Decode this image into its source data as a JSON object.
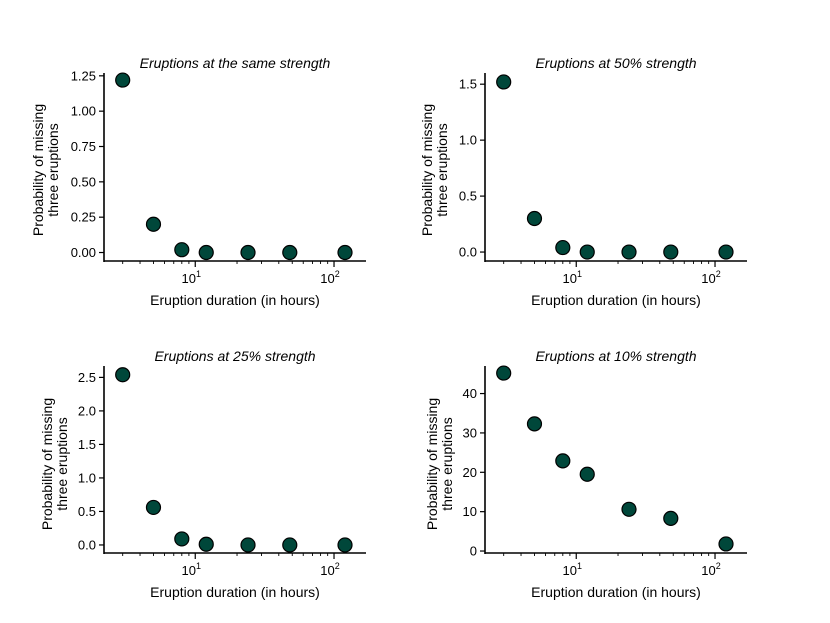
{
  "figure": {
    "marker_color": "#00473a",
    "edge_color": "#000000"
  },
  "chart_data": [
    {
      "type": "scatter",
      "title": "Eruptions at the same strength",
      "xlabel": "Eruption duration (in hours)",
      "ylabel": [
        "Probability of missing",
        "three eruptions"
      ],
      "xscale": "log",
      "xlim": [
        2.2,
        170
      ],
      "ylim": [
        -0.06,
        1.27
      ],
      "yticks": [
        0.0,
        0.25,
        0.5,
        0.75,
        1.0,
        1.25
      ],
      "ytick_labels": [
        "0.00",
        "0.25",
        "0.50",
        "0.75",
        "1.00",
        "1.25"
      ],
      "xtick_major": [
        {
          "value": 10,
          "base": "10",
          "exp": "1"
        },
        {
          "value": 100,
          "base": "10",
          "exp": "2"
        }
      ],
      "x": [
        3,
        5,
        8,
        12,
        24,
        48,
        120
      ],
      "y": [
        1.22,
        0.2,
        0.02,
        0.0,
        0.0,
        0.0,
        0.0
      ]
    },
    {
      "type": "scatter",
      "title": "Eruptions at 50% strength",
      "xlabel": "Eruption duration (in hours)",
      "ylabel": [
        "Probability of missing",
        "three eruptions"
      ],
      "xscale": "log",
      "xlim": [
        2.2,
        170
      ],
      "ylim": [
        -0.08,
        1.6
      ],
      "yticks": [
        0.0,
        0.5,
        1.0,
        1.5
      ],
      "ytick_labels": [
        "0.0",
        "0.5",
        "1.0",
        "1.5"
      ],
      "xtick_major": [
        {
          "value": 10,
          "base": "10",
          "exp": "1"
        },
        {
          "value": 100,
          "base": "10",
          "exp": "2"
        }
      ],
      "x": [
        3,
        5,
        8,
        12,
        24,
        48,
        120
      ],
      "y": [
        1.52,
        0.3,
        0.04,
        0.0,
        0.0,
        0.0,
        0.0
      ]
    },
    {
      "type": "scatter",
      "title": "Eruptions at 25% strength",
      "xlabel": "Eruption duration (in hours)",
      "ylabel": [
        "Probability of missing",
        "three eruptions"
      ],
      "xscale": "log",
      "xlim": [
        2.2,
        170
      ],
      "ylim": [
        -0.12,
        2.67
      ],
      "yticks": [
        0.0,
        0.5,
        1.0,
        1.5,
        2.0,
        2.5
      ],
      "ytick_labels": [
        "0.0",
        "0.5",
        "1.0",
        "1.5",
        "2.0",
        "2.5"
      ],
      "xtick_major": [
        {
          "value": 10,
          "base": "10",
          "exp": "1"
        },
        {
          "value": 100,
          "base": "10",
          "exp": "2"
        }
      ],
      "x": [
        3,
        5,
        8,
        12,
        24,
        48,
        120
      ],
      "y": [
        2.54,
        0.56,
        0.09,
        0.01,
        0.0,
        0.0,
        0.0
      ]
    },
    {
      "type": "scatter",
      "title": "Eruptions at 10% strength",
      "xlabel": "Eruption duration (in hours)",
      "ylabel": [
        "Probability of missing",
        "three eruptions"
      ],
      "xscale": "log",
      "xlim": [
        2.2,
        170
      ],
      "ylim": [
        -0.5,
        47
      ],
      "yticks": [
        0,
        10,
        20,
        30,
        40
      ],
      "ytick_labels": [
        "0",
        "10",
        "20",
        "30",
        "40"
      ],
      "xtick_major": [
        {
          "value": 10,
          "base": "10",
          "exp": "1"
        },
        {
          "value": 100,
          "base": "10",
          "exp": "2"
        }
      ],
      "x": [
        3,
        5,
        8,
        12,
        24,
        48,
        120
      ],
      "y": [
        45.2,
        32.3,
        22.9,
        19.5,
        10.6,
        8.3,
        1.8
      ]
    }
  ]
}
